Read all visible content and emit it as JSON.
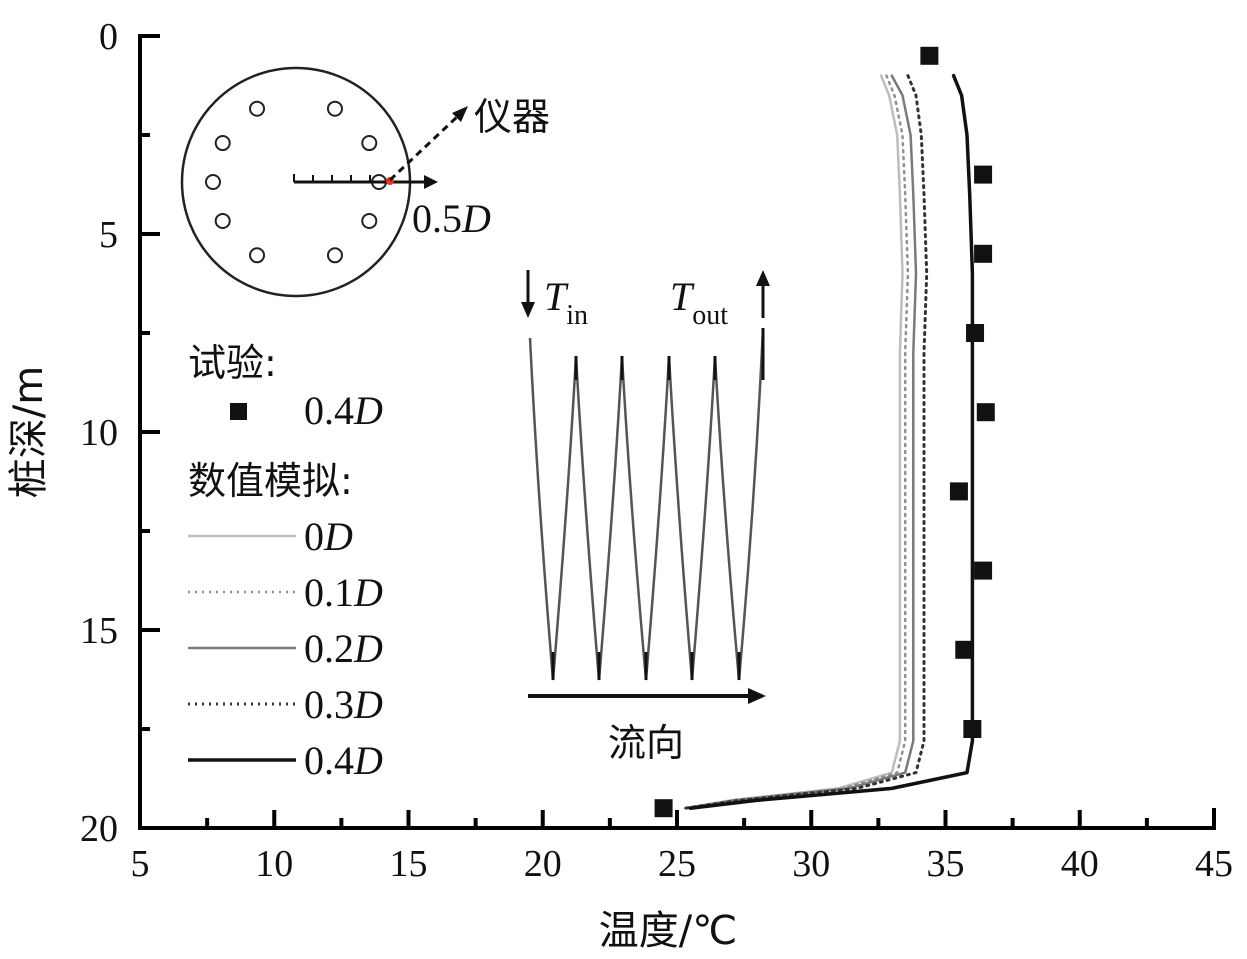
{
  "chart_data": {
    "type": "line",
    "xlabel": "温度/℃",
    "ylabel": "桩深/m",
    "xlim": [
      5,
      45
    ],
    "ylim": [
      0,
      20
    ],
    "y_inverted": true,
    "x_ticks": [
      "5",
      "10",
      "15",
      "20",
      "25",
      "30",
      "35",
      "40",
      "45"
    ],
    "y_ticks": [
      "0",
      "5",
      "10",
      "15",
      "20"
    ],
    "legend": {
      "experiment_header": "试验:",
      "simulation_header": "数值模拟:"
    },
    "experiment": {
      "name": "0.4D",
      "name_num": "0.4",
      "name_var": "D",
      "points": [
        {
          "x": 34.4,
          "y": 0.5
        },
        {
          "x": 36.4,
          "y": 3.5
        },
        {
          "x": 36.4,
          "y": 5.5
        },
        {
          "x": 36.1,
          "y": 7.5
        },
        {
          "x": 36.5,
          "y": 9.5
        },
        {
          "x": 35.5,
          "y": 11.5
        },
        {
          "x": 36.4,
          "y": 13.5
        },
        {
          "x": 35.7,
          "y": 15.5
        },
        {
          "x": 36.0,
          "y": 17.5
        },
        {
          "x": 24.5,
          "y": 19.5
        }
      ]
    },
    "series": [
      {
        "name": "0D",
        "name_num": "0",
        "name_var": "D",
        "color": "#bdbdbd",
        "dash": "solid",
        "points": [
          [
            32.6,
            1.0
          ],
          [
            32.9,
            1.5
          ],
          [
            33.2,
            2.5
          ],
          [
            33.3,
            4.0
          ],
          [
            33.4,
            6.0
          ],
          [
            33.3,
            8.0
          ],
          [
            33.3,
            10.0
          ],
          [
            33.3,
            12.0
          ],
          [
            33.3,
            14.0
          ],
          [
            33.3,
            16.0
          ],
          [
            33.3,
            17.8
          ],
          [
            33.0,
            18.6
          ],
          [
            31.0,
            19.0
          ],
          [
            27.0,
            19.3
          ],
          [
            25.3,
            19.5
          ]
        ]
      },
      {
        "name": "0.1D",
        "name_num": "0.1",
        "name_var": "D",
        "color": "#8f8f8f",
        "dash": "dotted",
        "points": [
          [
            32.8,
            1.0
          ],
          [
            33.1,
            1.5
          ],
          [
            33.4,
            2.5
          ],
          [
            33.5,
            4.0
          ],
          [
            33.6,
            6.0
          ],
          [
            33.5,
            8.0
          ],
          [
            33.5,
            10.0
          ],
          [
            33.5,
            12.0
          ],
          [
            33.5,
            14.0
          ],
          [
            33.5,
            16.0
          ],
          [
            33.5,
            17.8
          ],
          [
            33.2,
            18.6
          ],
          [
            31.2,
            19.0
          ],
          [
            27.1,
            19.3
          ],
          [
            25.3,
            19.5
          ]
        ]
      },
      {
        "name": "0.2D",
        "name_num": "0.2",
        "name_var": "D",
        "color": "#7a7a7a",
        "dash": "solid",
        "points": [
          [
            33.0,
            1.0
          ],
          [
            33.4,
            1.5
          ],
          [
            33.7,
            2.5
          ],
          [
            33.8,
            4.0
          ],
          [
            33.9,
            6.0
          ],
          [
            33.8,
            8.0
          ],
          [
            33.8,
            10.0
          ],
          [
            33.8,
            12.0
          ],
          [
            33.8,
            14.0
          ],
          [
            33.8,
            16.0
          ],
          [
            33.8,
            17.8
          ],
          [
            33.5,
            18.6
          ],
          [
            31.4,
            19.0
          ],
          [
            27.2,
            19.3
          ],
          [
            25.3,
            19.5
          ]
        ]
      },
      {
        "name": "0.3D",
        "name_num": "0.3",
        "name_var": "D",
        "color": "#333333",
        "dash": "dotted",
        "points": [
          [
            33.6,
            1.0
          ],
          [
            33.9,
            1.5
          ],
          [
            34.1,
            2.5
          ],
          [
            34.2,
            4.0
          ],
          [
            34.3,
            6.0
          ],
          [
            34.2,
            8.0
          ],
          [
            34.2,
            10.0
          ],
          [
            34.2,
            12.0
          ],
          [
            34.2,
            14.0
          ],
          [
            34.2,
            16.0
          ],
          [
            34.2,
            17.8
          ],
          [
            33.9,
            18.6
          ],
          [
            31.7,
            19.0
          ],
          [
            27.3,
            19.3
          ],
          [
            25.3,
            19.5
          ]
        ]
      },
      {
        "name": "0.4D",
        "name_num": "0.4",
        "name_var": "D",
        "color": "#111111",
        "dash": "solid",
        "points": [
          [
            35.3,
            1.0
          ],
          [
            35.6,
            1.5
          ],
          [
            35.8,
            2.5
          ],
          [
            35.9,
            4.0
          ],
          [
            36.0,
            6.0
          ],
          [
            36.0,
            8.0
          ],
          [
            36.0,
            10.0
          ],
          [
            36.0,
            12.0
          ],
          [
            36.0,
            14.0
          ],
          [
            36.0,
            16.0
          ],
          [
            36.0,
            17.8
          ],
          [
            35.8,
            18.6
          ],
          [
            33.0,
            19.0
          ],
          [
            28.0,
            19.3
          ],
          [
            25.5,
            19.5
          ]
        ]
      }
    ],
    "inset_cross_section": {
      "label_instrument": "仪器",
      "label_position_num": "0.5",
      "label_position_var": "D"
    },
    "inset_flow": {
      "label_in_var": "T",
      "label_in_sub": "in",
      "label_out_var": "T",
      "label_out_sub": "out",
      "label_flow": "流向"
    }
  }
}
